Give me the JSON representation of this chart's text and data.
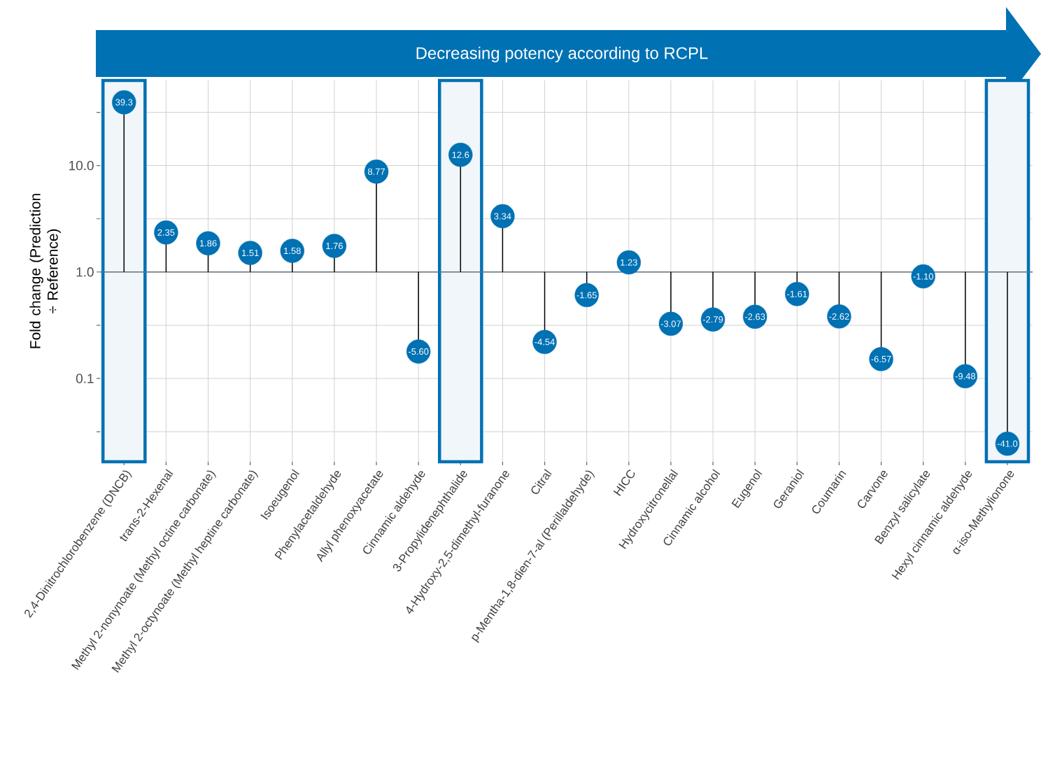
{
  "chart_data": {
    "type": "lollipop",
    "title": "Decreasing potency according to RCPL",
    "ylabel": "Fold change (Prediction ÷ Reference)",
    "categories": [
      "2,4-Dinitrochlorobenzene (DNCB)",
      "trans-2-Hexenal",
      "Methyl 2-nonynoate (Methyl octine carbonate)",
      "Methyl 2-octynoate (Methyl heptine carbonate)",
      "Isoeugenol",
      "Phenylacetaldehyde",
      "Allyl phenoxyacetate",
      "Cinnamic aldehyde",
      "3-Propylidenephthalide",
      "4-Hydroxy-2,5-dimethyl-furanone",
      "Citral",
      "p-Mentha-1,8-dien-7-al (Perillaldehyde)",
      "HICC",
      "Hydroxycitronellal",
      "Cinnamic alcohol",
      "Eugenol",
      "Geraniol",
      "Coumarin",
      "Carvone",
      "Benzyl salicylate",
      "Hexyl cinnamic aldehyde",
      "α-iso-Methylionone"
    ],
    "values": [
      39.3,
      2.35,
      1.86,
      1.51,
      1.58,
      1.76,
      8.77,
      0.179,
      12.6,
      3.34,
      0.22,
      0.606,
      1.23,
      0.326,
      0.358,
      0.38,
      0.621,
      0.382,
      0.152,
      0.909,
      0.105,
      0.0244
    ],
    "annotations": [
      {
        "text": "39.3",
        "x": "2,4-Dinitrochlorobenzene (DNCB)",
        "y": 39.3
      },
      {
        "text": "2.35",
        "x": "trans-2-Hexenal",
        "y": 2.35
      },
      {
        "text": "1.86",
        "x": "Methyl 2-nonynoate (Methyl octine carbonate)",
        "y": 1.86
      },
      {
        "text": "1.51",
        "x": "Methyl 2-octynoate (Methyl heptine carbonate)",
        "y": 1.51
      },
      {
        "text": "1.58",
        "x": "Isoeugenol",
        "y": 1.58
      },
      {
        "text": "1.76",
        "x": "Phenylacetaldehyde",
        "y": 1.76
      },
      {
        "text": "8.77",
        "x": "Allyl phenoxyacetate",
        "y": 8.77
      },
      {
        "text": "-5.60",
        "x": "Cinnamic aldehyde",
        "y": 0.179
      },
      {
        "text": "12.6",
        "x": "3-Propylidenephthalide",
        "y": 12.6
      },
      {
        "text": "3.34",
        "x": "4-Hydroxy-2,5-dimethyl-furanone",
        "y": 3.34
      },
      {
        "text": "-4.54",
        "x": "Citral",
        "y": 0.22
      },
      {
        "text": "-1.65",
        "x": "p-Mentha-1,8-dien-7-al (Perillaldehyde)",
        "y": 0.606
      },
      {
        "text": "1.23",
        "x": "HICC",
        "y": 1.23
      },
      {
        "text": "-3.07",
        "x": "Hydroxycitronellal",
        "y": 0.326
      },
      {
        "text": "-2.79",
        "x": "Cinnamic alcohol",
        "y": 0.358
      },
      {
        "text": "-2.63",
        "x": "Eugenol",
        "y": 0.38
      },
      {
        "text": "-1.61",
        "x": "Geraniol",
        "y": 0.621
      },
      {
        "text": "-2.62",
        "x": "Coumarin",
        "y": 0.382
      },
      {
        "text": "-6.57",
        "x": "Carvone",
        "y": 0.152
      },
      {
        "text": "-1.10",
        "x": "Benzyl salicylate",
        "y": 0.909
      },
      {
        "text": "-9.48",
        "x": "Hexyl cinnamic aldehyde",
        "y": 0.105
      },
      {
        "text": "-41.0",
        "x": "α-iso-Methylionone",
        "y": 0.0244
      }
    ],
    "color": "#0071b3",
    "marker": "circle",
    "log": "y",
    "grid": true,
    "ylim": [
      0.0165,
      63
    ],
    "yticks": [
      {
        "value": 0.0316,
        "label": null
      },
      {
        "value": 0.1,
        "label": "0.1"
      },
      {
        "value": 0.316,
        "label": null
      },
      {
        "value": 1,
        "label": "1.0"
      },
      {
        "value": 3.16,
        "label": null
      },
      {
        "value": 10,
        "label": "10.0"
      },
      {
        "value": 31.6,
        "label": null
      }
    ],
    "ref_lines": [
      {
        "axis": "y",
        "value": 1,
        "color": "#5f7080"
      }
    ],
    "bands": [
      {
        "axis": "x",
        "from": "2,4-Dinitrochlorobenzene (DNCB)",
        "to": "2,4-Dinitrochlorobenzene (DNCB)",
        "color": "#0071b3"
      },
      {
        "axis": "x",
        "from": "3-Propylidenephthalide",
        "to": "3-Propylidenephthalide",
        "color": "#0071b3"
      },
      {
        "axis": "x",
        "from": "α-iso-Methylionone",
        "to": "α-iso-Methylionone",
        "color": "#0071b3"
      }
    ]
  }
}
